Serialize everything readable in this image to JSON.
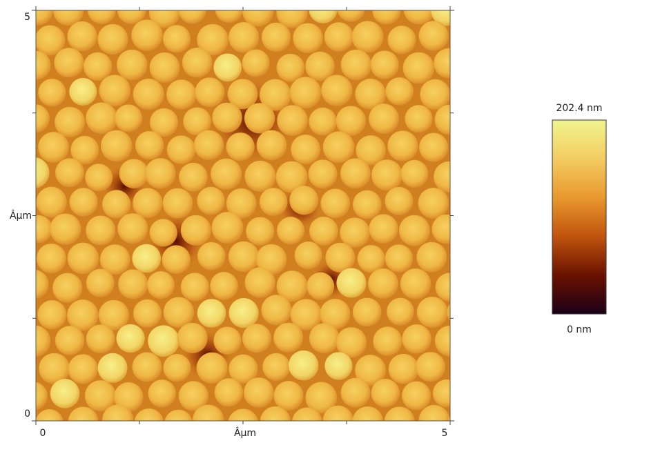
{
  "chart_data": {
    "type": "image",
    "xlabel": "Âµm",
    "ylabel": "Âµm",
    "xlim": [
      0,
      5
    ],
    "ylim": [
      0,
      5
    ],
    "xticks": [
      0,
      5
    ],
    "yticks": [
      0,
      5
    ],
    "xminorticks": [
      1.25,
      2.5,
      3.75
    ],
    "yminorticks": [
      1.25,
      2.5,
      3.75
    ],
    "colorbar": {
      "lim": [
        0,
        202.4
      ],
      "ticks": [
        {
          "value": 202.4,
          "label": "202.4 nm"
        },
        {
          "value": 0,
          "label": "0 nm"
        }
      ],
      "colors": [
        "#1a0018",
        "#6a1200",
        "#c0540e",
        "#e8982e",
        "#f3cc62",
        "#f0f48e"
      ]
    }
  }
}
